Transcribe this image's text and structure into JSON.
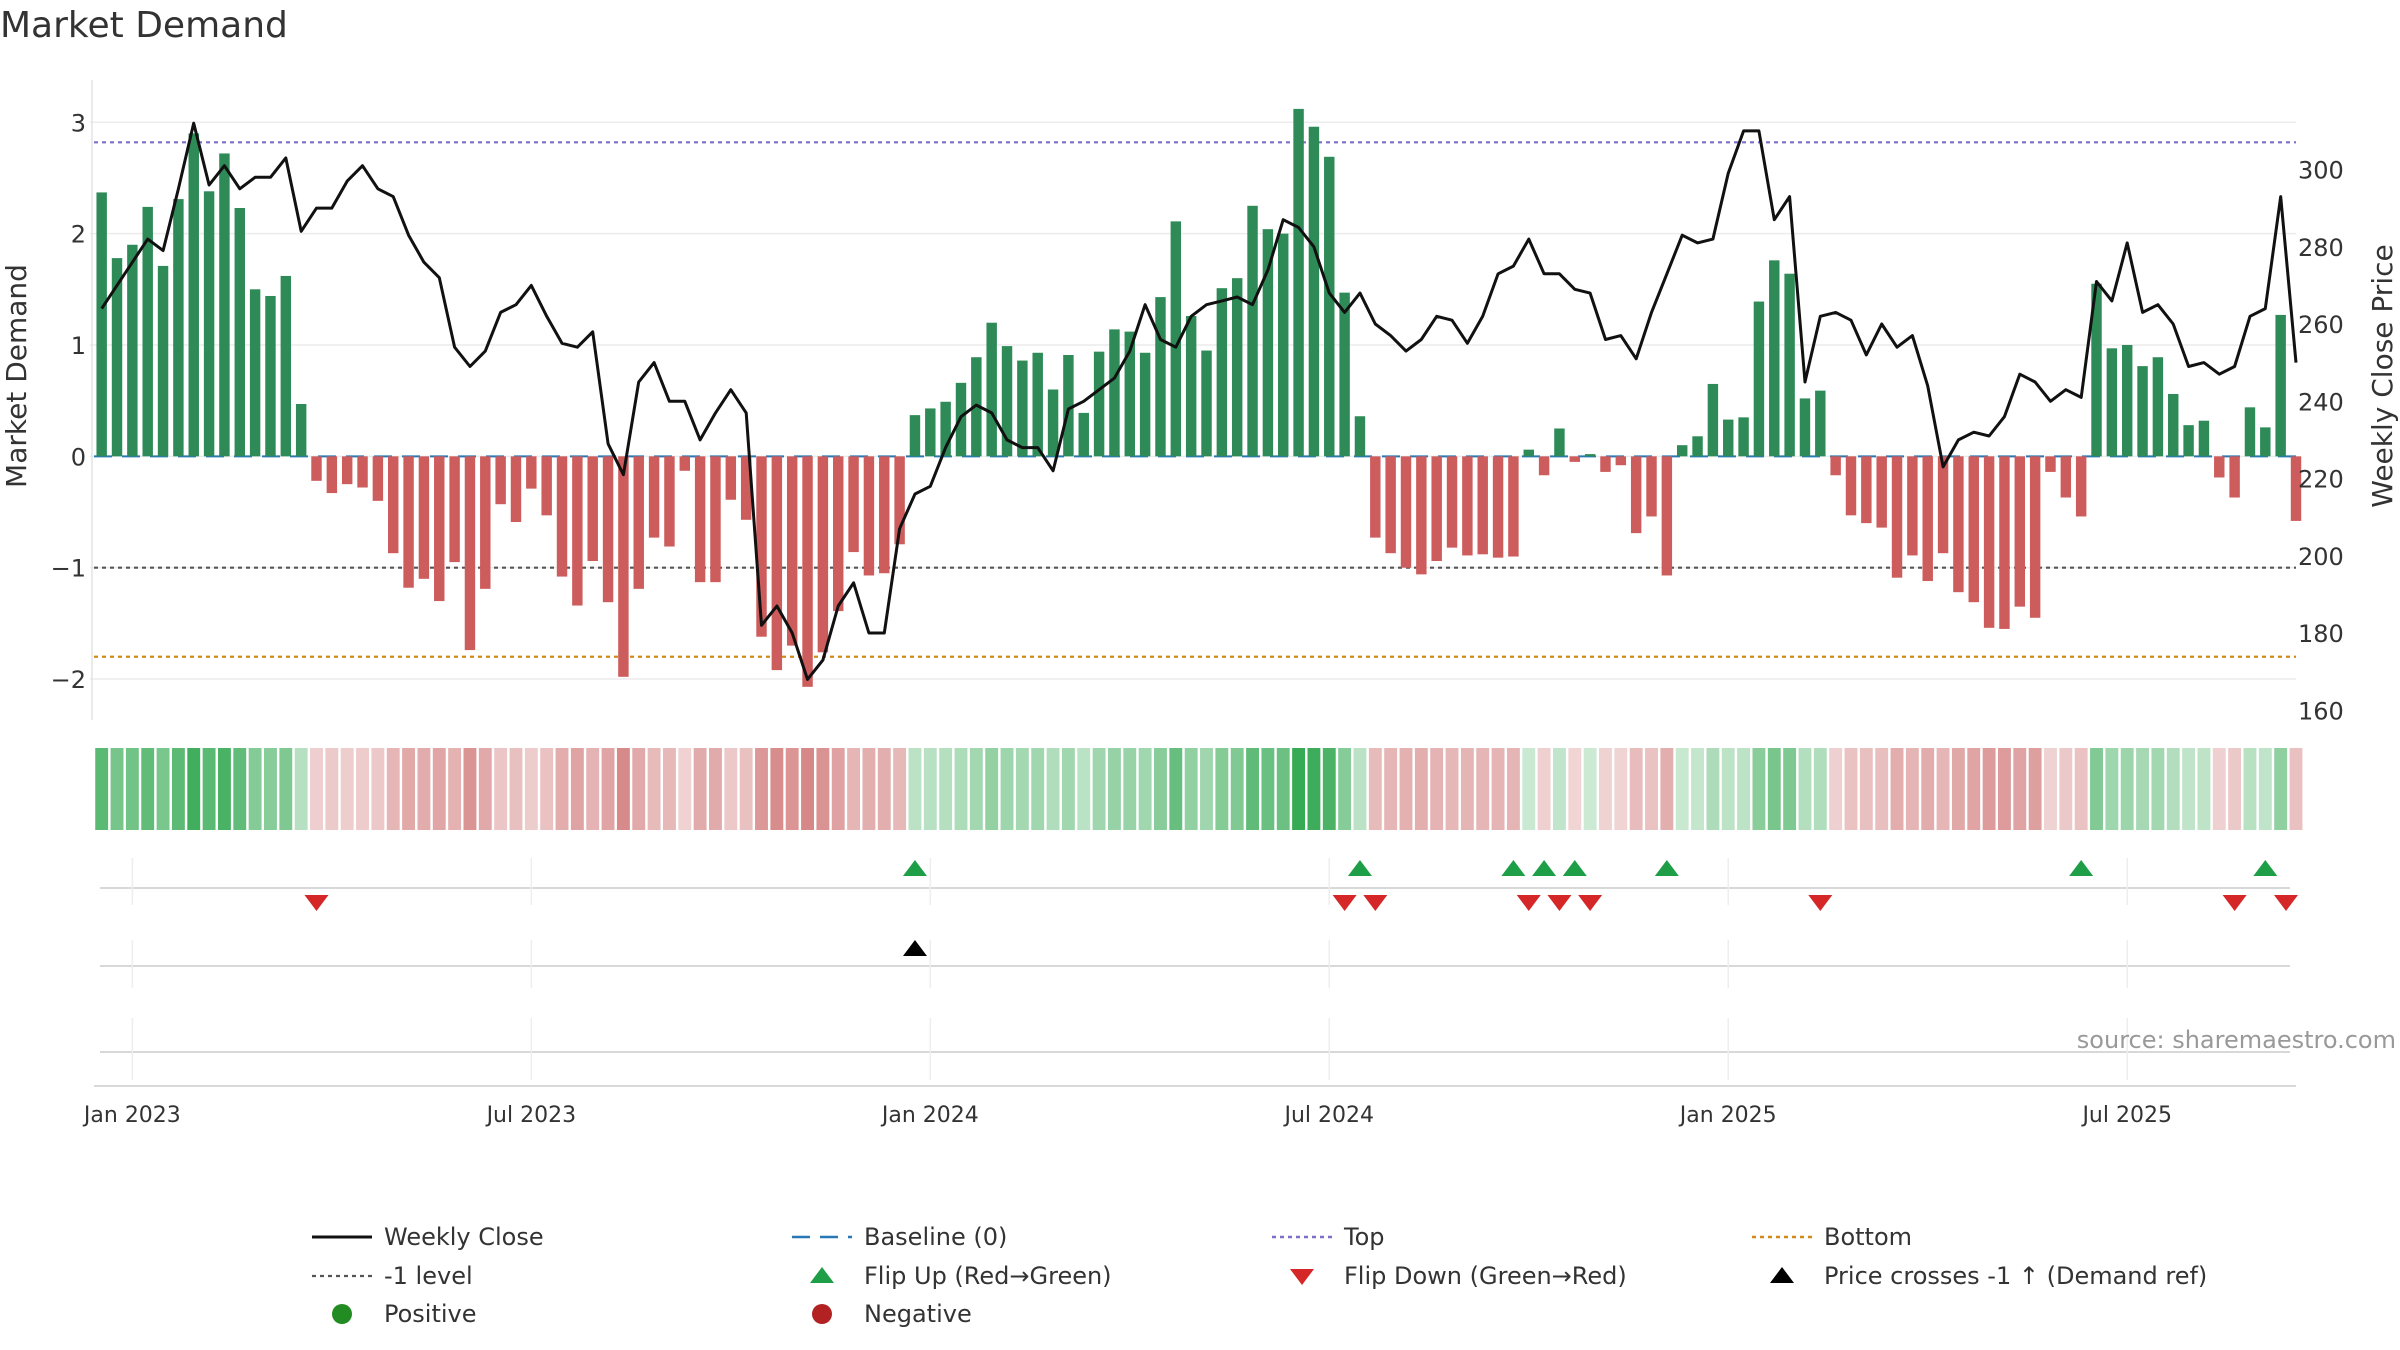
{
  "chart_data": {
    "type": "bar+line",
    "title": "Market Demand",
    "ylabel_left": "Market Demand",
    "ylabel_right": "Weekly Close Price",
    "left_ticks": [
      "3",
      "2",
      "1",
      "0",
      "−1",
      "−2"
    ],
    "left_tick_values": [
      3,
      2,
      1,
      0,
      -1,
      -2
    ],
    "ylim_left": [
      -2.35,
      3.2
    ],
    "right_ticks": [
      "300",
      "280",
      "260",
      "240",
      "220",
      "200",
      "180",
      "160"
    ],
    "right_tick_values": [
      300,
      280,
      260,
      240,
      220,
      200,
      180,
      160
    ],
    "ylim_right": [
      158,
      318
    ],
    "x_ticks": [
      "Jan 2023",
      "Jul 2023",
      "Jan 2024",
      "Jul 2024",
      "Jan 2025",
      "Jul 2025"
    ],
    "x_tick_weeks": [
      2,
      28,
      54,
      80,
      106,
      132
    ],
    "reference_lines": [
      {
        "name": "Top",
        "value": 2.82,
        "color": "#7b6fc9"
      },
      {
        "name": "-1 level",
        "value": -1,
        "color": "#555555"
      },
      {
        "name": "Bottom",
        "value": -1.8,
        "color": "#d48a1a"
      },
      {
        "name": "Baseline (0)",
        "value": 0,
        "color": "#2878b5"
      }
    ],
    "series": [
      {
        "name": "Market Demand",
        "type": "bar",
        "axis": "left",
        "values": [
          2.37,
          1.78,
          1.9,
          2.24,
          1.71,
          2.31,
          2.9,
          2.38,
          2.72,
          2.23,
          1.5,
          1.44,
          1.62,
          0.47,
          -0.22,
          -0.33,
          -0.25,
          -0.28,
          -0.4,
          -0.87,
          -1.18,
          -1.1,
          -1.3,
          -0.95,
          -1.74,
          -1.19,
          -0.43,
          -0.59,
          -0.29,
          -0.53,
          -1.08,
          -1.34,
          -0.94,
          -1.31,
          -1.98,
          -1.19,
          -0.73,
          -0.81,
          -0.13,
          -1.13,
          -1.13,
          -0.39,
          -0.57,
          -1.62,
          -1.92,
          -1.7,
          -2.07,
          -1.76,
          -1.39,
          -0.86,
          -1.07,
          -1.05,
          -0.79,
          0.37,
          0.43,
          0.49,
          0.66,
          0.89,
          1.2,
          0.99,
          0.86,
          0.93,
          0.6,
          0.91,
          0.39,
          0.94,
          1.14,
          1.12,
          0.93,
          1.43,
          2.11,
          1.26,
          0.95,
          1.51,
          1.6,
          2.25,
          2.04,
          2.0,
          3.12,
          2.96,
          2.69,
          1.47,
          0.36,
          -0.73,
          -0.87,
          -1.0,
          -1.06,
          -0.94,
          -0.82,
          -0.89,
          -0.88,
          -0.91,
          -0.9,
          0.06,
          -0.17,
          0.25,
          -0.05,
          0.02,
          -0.14,
          -0.08,
          -0.69,
          -0.54,
          -1.07,
          0.1,
          0.18,
          0.65,
          0.33,
          0.35,
          1.39,
          1.76,
          1.64,
          0.52,
          0.59,
          -0.17,
          -0.53,
          -0.6,
          -0.64,
          -1.09,
          -0.89,
          -1.12,
          -0.87,
          -1.22,
          -1.31,
          -1.54,
          -1.55,
          -1.35,
          -1.45,
          -0.14,
          -0.37,
          -0.54,
          1.55,
          0.97,
          1.0,
          0.81,
          0.89,
          0.56,
          0.28,
          0.32,
          -0.19,
          -0.37,
          0.44,
          0.26,
          1.27,
          -0.58
        ]
      },
      {
        "name": "Weekly Close",
        "type": "line",
        "axis": "right",
        "values": [
          264,
          270,
          276,
          282,
          279,
          295,
          312,
          296,
          301,
          295,
          298,
          298,
          303,
          284,
          290,
          290,
          297,
          301,
          295,
          293,
          283,
          276,
          272,
          254,
          249,
          253,
          263,
          265,
          270,
          262,
          255,
          254,
          258,
          229,
          221,
          245,
          250,
          240,
          240,
          230,
          237,
          243,
          237,
          182,
          187,
          180,
          168,
          173,
          187,
          193,
          180,
          180,
          207,
          216,
          218,
          228,
          236,
          239,
          237,
          230,
          228,
          228,
          222,
          238,
          240,
          243,
          246,
          253,
          265,
          256,
          254,
          262,
          265,
          266,
          267,
          265,
          274,
          287,
          285,
          280,
          268,
          263,
          268,
          260,
          257,
          253,
          256,
          262,
          261,
          255,
          262,
          273,
          275,
          282,
          273,
          273,
          269,
          268,
          256,
          257,
          251,
          263,
          273,
          283,
          281,
          282,
          299,
          310,
          310,
          287,
          293,
          245,
          262,
          263,
          261,
          252,
          260,
          254,
          257,
          244,
          223,
          230,
          232,
          231,
          236,
          247,
          245,
          240,
          243,
          241,
          271,
          266,
          281,
          263,
          265,
          260,
          249,
          250,
          247,
          249,
          262,
          264,
          293,
          250
        ]
      }
    ],
    "heat_strip": "Market Demand (color strip)",
    "flip_up_weeks": [
      53,
      82,
      92,
      94,
      96,
      102,
      129,
      141
    ],
    "flip_down_weeks": [
      14,
      81,
      83,
      93,
      95,
      97,
      112,
      139,
      144
    ],
    "price_cross_weeks": [
      53
    ],
    "legend": {
      "weekly_close": "Weekly Close",
      "baseline": "Baseline (0)",
      "top": "Top",
      "bottom": "Bottom",
      "minus1": "-1 level",
      "flip_up": "Flip Up (Red→Green)",
      "flip_down": "Flip Down (Green→Red)",
      "price_cross": "Price crosses -1 ↑ (Demand ref)",
      "positive": "Positive",
      "negative": "Negative"
    },
    "source": "source: sharemaestro.com",
    "colors": {
      "positive": "#2e8b57",
      "negative": "#cd5c5c",
      "line": "#111111",
      "flip_up": "#1f9e48",
      "flip_down": "#d62728",
      "legend_positive": "#228b22",
      "legend_negative": "#b22222"
    }
  }
}
